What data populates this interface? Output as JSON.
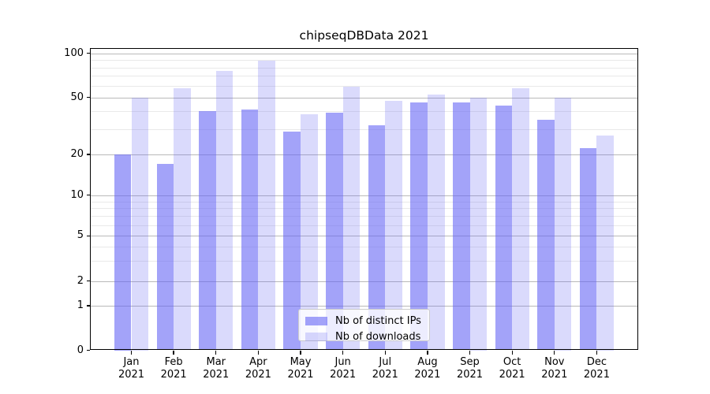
{
  "title": "chipseqDBData 2021",
  "colors": {
    "bar_distinct_ips": "rgba(97,97,244,0.58)",
    "bar_downloads": "rgba(97,97,244,0.23)",
    "major_grid": "#b9b9b9",
    "minor_grid": "#e9e9e9",
    "axis_line": "#000000",
    "text": "#000000",
    "legend_border": "#cccccc"
  },
  "legend": {
    "items": [
      {
        "label": "Nb of distinct IPs",
        "swatch": "bar_distinct_ips"
      },
      {
        "label": "Nb of downloads",
        "swatch": "bar_downloads"
      }
    ]
  },
  "y_axis": {
    "tick_labels": [
      "100",
      "50",
      "20",
      "10",
      "5",
      "2",
      "1",
      "0"
    ],
    "tick_values": [
      100,
      50,
      20,
      10,
      5,
      2,
      1,
      0
    ],
    "minor_gridline_values": [
      3,
      4,
      6,
      7,
      8,
      9,
      30,
      40,
      60,
      70,
      80,
      90
    ]
  },
  "x_axis": {
    "tick_labels_line1": [
      "Jan",
      "Feb",
      "Mar",
      "Apr",
      "May",
      "Jun",
      "Jul",
      "Aug",
      "Sep",
      "Oct",
      "Nov",
      "Dec"
    ],
    "tick_labels_line2": [
      "2021",
      "2021",
      "2021",
      "2021",
      "2021",
      "2021",
      "2021",
      "2021",
      "2021",
      "2021",
      "2021",
      "2021"
    ]
  },
  "chart_data": {
    "type": "bar",
    "title": "chipseqDBData 2021",
    "categories": [
      "Jan 2021",
      "Feb 2021",
      "Mar 2021",
      "Apr 2021",
      "May 2021",
      "Jun 2021",
      "Jul 2021",
      "Aug 2021",
      "Sep 2021",
      "Oct 2021",
      "Nov 2021",
      "Dec 2021"
    ],
    "series": [
      {
        "name": "Nb of distinct IPs",
        "values": [
          20,
          17,
          40,
          41,
          29,
          39,
          32,
          46,
          46,
          44,
          35,
          22
        ]
      },
      {
        "name": "Nb of downloads",
        "values": [
          50,
          58,
          76,
          89,
          38,
          59,
          47,
          52,
          50,
          58,
          50,
          27
        ]
      }
    ],
    "yscale": "symlog",
    "ylim": [
      0,
      105
    ],
    "grid": true,
    "legend_position": "lower center"
  }
}
